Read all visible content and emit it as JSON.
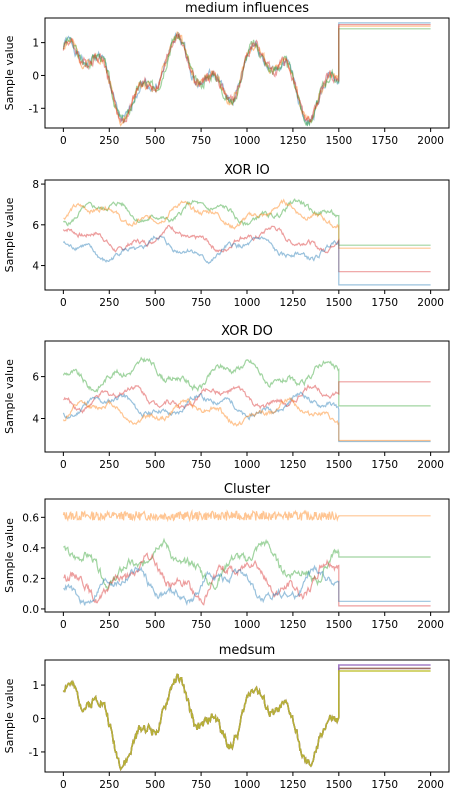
{
  "chart_data": [
    {
      "type": "line",
      "title": "medium influences",
      "ylabel": "Sample value",
      "xlim": [
        -100,
        2100
      ],
      "ylim": [
        -1.6,
        1.75
      ],
      "xticks": [
        0,
        250,
        500,
        750,
        1000,
        1250,
        1500,
        1750,
        2000
      ],
      "yticks": [
        -1,
        0,
        1
      ],
      "grid": false,
      "series": [
        {
          "color": "#1f77b4",
          "start": -0.1,
          "end": 1.6,
          "shape": "wave",
          "amp": 1.0,
          "seed": 1
        },
        {
          "color": "#ff7f0e",
          "start": 0.0,
          "end": 1.5,
          "shape": "wave",
          "amp": 1.0,
          "seed": 2
        },
        {
          "color": "#2ca02c",
          "start": 0.1,
          "end": 1.42,
          "shape": "wave",
          "amp": 1.0,
          "seed": 3
        },
        {
          "color": "#d62728",
          "start": -0.05,
          "end": 1.55,
          "shape": "wave",
          "amp": 1.0,
          "seed": 4
        }
      ]
    },
    {
      "type": "line",
      "title": "XOR IO",
      "ylabel": "Sample value",
      "xlim": [
        -100,
        2100
      ],
      "ylim": [
        2.8,
        8.2
      ],
      "xticks": [
        0,
        250,
        500,
        750,
        1000,
        1250,
        1500,
        1750,
        2000
      ],
      "yticks": [
        4,
        6,
        8
      ],
      "grid": false,
      "series": [
        {
          "color": "#2ca02c",
          "base": 6.6,
          "end": 5.0,
          "shape": "wave",
          "amp": 0.5,
          "seed": 5
        },
        {
          "color": "#ff7f0e",
          "base": 6.5,
          "end": 4.85,
          "shape": "wave",
          "amp": 0.5,
          "seed": 6
        },
        {
          "color": "#d62728",
          "base": 5.3,
          "end": 3.7,
          "shape": "wave",
          "amp": 0.5,
          "seed": 7
        },
        {
          "color": "#1f77b4",
          "base": 4.8,
          "end": 3.05,
          "shape": "wave",
          "amp": 0.5,
          "seed": 8
        }
      ]
    },
    {
      "type": "line",
      "title": "XOR DO",
      "ylabel": "Sample value",
      "xlim": [
        -100,
        2100
      ],
      "ylim": [
        2.4,
        7.7
      ],
      "xticks": [
        0,
        250,
        500,
        750,
        1000,
        1250,
        1500,
        1750,
        2000
      ],
      "yticks": [
        4,
        6
      ],
      "grid": false,
      "series": [
        {
          "color": "#2ca02c",
          "base": 6.1,
          "end": 4.6,
          "shape": "wave",
          "amp": 0.6,
          "seed": 9
        },
        {
          "color": "#d62728",
          "base": 5.0,
          "end": 5.75,
          "shape": "wave",
          "amp": 0.5,
          "seed": 10
        },
        {
          "color": "#1f77b4",
          "base": 4.6,
          "end": 2.9,
          "shape": "wave",
          "amp": 0.5,
          "seed": 11
        },
        {
          "color": "#ff7f0e",
          "base": 4.3,
          "end": 2.95,
          "shape": "wave",
          "amp": 0.5,
          "seed": 12
        }
      ]
    },
    {
      "type": "line",
      "title": "Cluster",
      "ylabel": "Sample value",
      "xlim": [
        -100,
        2100
      ],
      "ylim": [
        -0.02,
        0.72
      ],
      "xticks": [
        0,
        250,
        500,
        750,
        1000,
        1250,
        1500,
        1750,
        2000
      ],
      "yticks": [
        0.0,
        0.2,
        0.4,
        0.6
      ],
      "grid": false,
      "series": [
        {
          "color": "#ff7f0e",
          "base": 0.61,
          "end": 0.61,
          "shape": "noise",
          "amp": 0.03,
          "seed": 13
        },
        {
          "color": "#2ca02c",
          "base": 0.3,
          "end": 0.34,
          "shape": "wave",
          "amp": 0.12,
          "seed": 14
        },
        {
          "color": "#d62728",
          "base": 0.2,
          "end": 0.02,
          "shape": "wave",
          "amp": 0.12,
          "seed": 15
        },
        {
          "color": "#1f77b4",
          "base": 0.15,
          "end": 0.05,
          "shape": "wave",
          "amp": 0.1,
          "seed": 16
        }
      ]
    },
    {
      "type": "line",
      "title": "medsum",
      "ylabel": "Sample value",
      "xlim": [
        -100,
        2100
      ],
      "ylim": [
        -1.6,
        1.75
      ],
      "xticks": [
        0,
        250,
        500,
        750,
        1000,
        1250,
        1500,
        1750,
        2000
      ],
      "yticks": [
        -1,
        0,
        1
      ],
      "grid": false,
      "series": [
        {
          "color": "#8c564b",
          "start": 0.0,
          "end": 1.5,
          "shape": "wave",
          "amp": 1.0,
          "seed": 2,
          "thick": true
        },
        {
          "color": "#9467bd",
          "start": 0.0,
          "end": 1.6,
          "shape": "wave",
          "amp": 1.0,
          "seed": 2,
          "thick": true
        },
        {
          "color": "#bcbd22",
          "start": 0.0,
          "end": 1.42,
          "shape": "wave",
          "amp": 1.0,
          "seed": 2,
          "thick": true
        }
      ]
    }
  ]
}
